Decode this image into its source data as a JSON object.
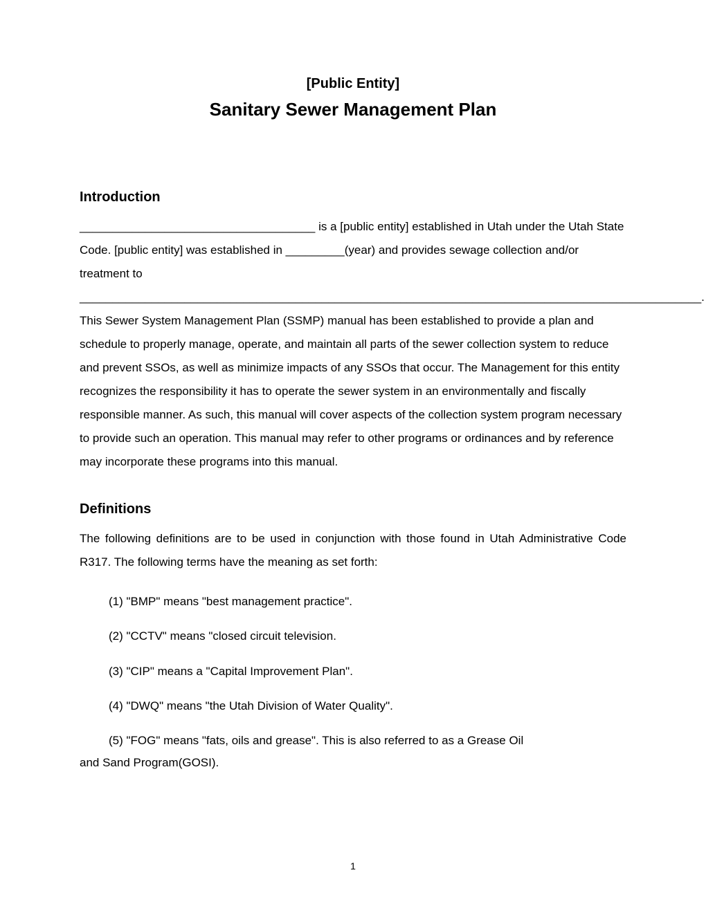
{
  "header": {
    "org": "[Public Entity]",
    "title": "Sanitary Sewer Management Plan"
  },
  "introduction": {
    "heading": "Introduction",
    "body": "____________________________________ is a [public entity] established in Utah under the Utah State Code.   [public entity] was established in _________(year) and provides sewage collection and/or treatment to _______________________________________________________________________________________________.  This Sewer System Management Plan (SSMP) manual has been established to provide a plan and schedule to properly manage, operate, and maintain all parts of the sewer collection system to reduce and prevent SSOs, as well as minimize impacts of any SSOs that occur.  The Management for this entity recognizes the responsibility it has to operate the sewer system in an environmentally and fiscally responsible manner. As such, this manual will cover aspects of the collection system program necessary to provide such an operation. This manual may refer to other programs or ordinances and by reference may incorporate these programs into this manual."
  },
  "definitions": {
    "heading": "Definitions",
    "intro": "The following definitions are to be used in conjunction with those found in Utah Administrative Code R317.  The following terms have the meaning as set forth:",
    "items": [
      "(1)  \"BMP\" means \"best management practice\".",
      "(2)  \"CCTV\" means \"closed circuit television.",
      "(3)  \"CIP\" means a \"Capital Improvement Plan\".",
      "(4)  \"DWQ\" means \"the Utah Division of Water Quality\"."
    ],
    "item5_line1": "(5)  \"FOG\" means \"fats, oils and grease\".  This is also referred to as a Grease Oil",
    "item5_line2": "and Sand Program(GOSI)."
  },
  "page_number": "1",
  "colors": {
    "text": "#000000",
    "background": "#ffffff"
  },
  "typography": {
    "body_fontsize": 17,
    "heading_fontsize": 20,
    "title_fontsize": 26,
    "page_number_fontsize": 14,
    "font_family": "Arial"
  }
}
